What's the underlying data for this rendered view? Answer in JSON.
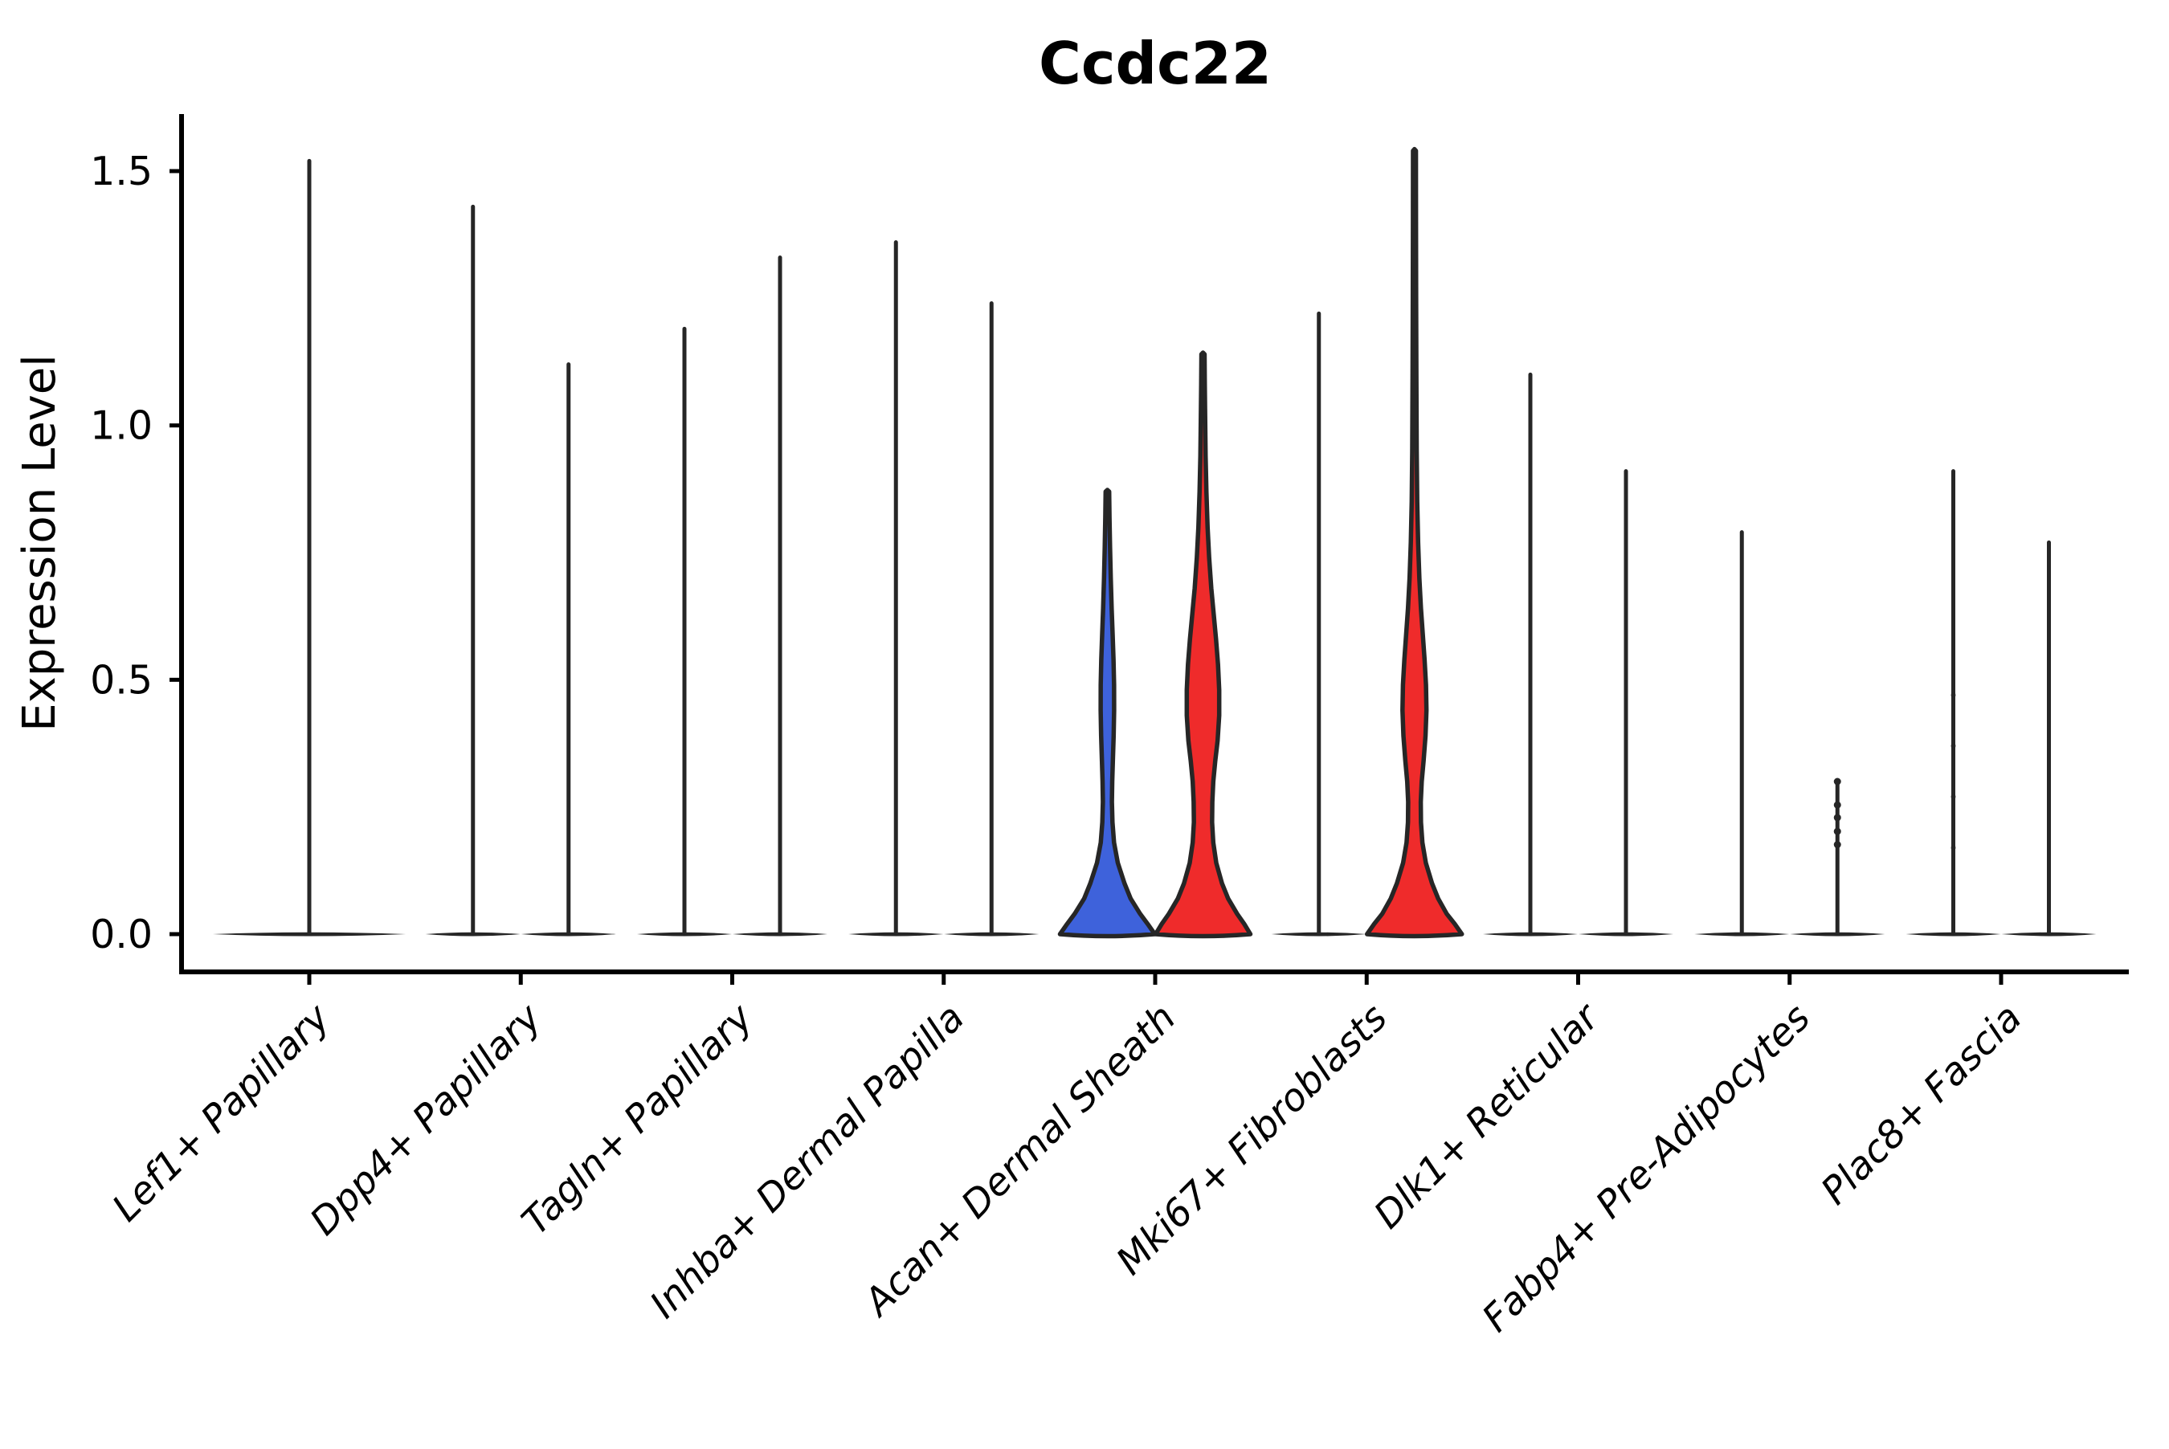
{
  "title": "Ccdc22",
  "axes": {
    "ylabel": "Expression Level",
    "ytick_labels": [
      "0.0",
      "0.5",
      "1.0",
      "1.5"
    ],
    "ytick_values": [
      0.0,
      0.5,
      1.0,
      1.5
    ]
  },
  "colors": {
    "blue_fill": "#3E62DB",
    "red_fill": "#EF2B2B",
    "violin_outline": "#262626",
    "axis_color": "#000000",
    "background": "#FFFFFF"
  },
  "chart_data": {
    "type": "violin",
    "title": "Ccdc22",
    "xlabel": "",
    "ylabel": "Expression Level",
    "ylim": [
      -0.07,
      1.61
    ],
    "yticks": [
      0.0,
      0.5,
      1.0,
      1.5
    ],
    "grid": false,
    "legend": "none",
    "categories": [
      "Lef1+ Papillary",
      "Dpp4+ Papillary",
      "Tagln+ Papillary",
      "Inhba+ Dermal Papilla",
      "Acan+ Dermal Sheath",
      "Mki67+ Fibroblasts",
      "Dlk1+ Reticular",
      "Fabp4+ Pre-Adipocytes",
      "Plac8+ Fascia"
    ],
    "violins": [
      {
        "category": "Lef1+ Papillary",
        "group": "single",
        "max": 1.52,
        "fill": "none"
      },
      {
        "category": "Dpp4+ Papillary",
        "group": "left",
        "max": 1.43,
        "fill": "none"
      },
      {
        "category": "Dpp4+ Papillary",
        "group": "right",
        "max": 1.12,
        "fill": "none"
      },
      {
        "category": "Tagln+ Papillary",
        "group": "left",
        "max": 1.19,
        "fill": "none"
      },
      {
        "category": "Tagln+ Papillary",
        "group": "right",
        "max": 1.33,
        "fill": "none"
      },
      {
        "category": "Inhba+ Dermal Papilla",
        "group": "left",
        "max": 1.36,
        "fill": "none"
      },
      {
        "category": "Inhba+ Dermal Papilla",
        "group": "right",
        "max": 1.24,
        "fill": "none"
      },
      {
        "category": "Acan+ Dermal Sheath",
        "group": "left",
        "max": 0.87,
        "fill": "blue",
        "profile": [
          [
            0,
            1
          ],
          [
            0.02,
            0.85
          ],
          [
            0.04,
            0.69
          ],
          [
            0.07,
            0.49
          ],
          [
            0.1,
            0.36
          ],
          [
            0.14,
            0.22
          ],
          [
            0.18,
            0.14
          ],
          [
            0.22,
            0.107
          ],
          [
            0.26,
            0.095
          ],
          [
            0.3,
            0.102
          ],
          [
            0.34,
            0.115
          ],
          [
            0.39,
            0.132
          ],
          [
            0.44,
            0.142
          ],
          [
            0.49,
            0.141
          ],
          [
            0.54,
            0.129
          ],
          [
            0.59,
            0.11
          ],
          [
            0.64,
            0.09
          ],
          [
            0.7,
            0.071
          ],
          [
            0.76,
            0.056
          ],
          [
            0.82,
            0.044
          ],
          [
            0.87,
            0.037
          ]
        ]
      },
      {
        "category": "Acan+ Dermal Sheath",
        "group": "right",
        "max": 1.14,
        "fill": "red",
        "profile": [
          [
            0,
            1
          ],
          [
            0.02,
            0.87
          ],
          [
            0.04,
            0.72
          ],
          [
            0.07,
            0.53
          ],
          [
            0.1,
            0.4
          ],
          [
            0.14,
            0.28
          ],
          [
            0.18,
            0.217
          ],
          [
            0.22,
            0.192
          ],
          [
            0.26,
            0.197
          ],
          [
            0.3,
            0.217
          ],
          [
            0.34,
            0.258
          ],
          [
            0.38,
            0.308
          ],
          [
            0.43,
            0.342
          ],
          [
            0.48,
            0.342
          ],
          [
            0.53,
            0.317
          ],
          [
            0.58,
            0.275
          ],
          [
            0.63,
            0.225
          ],
          [
            0.68,
            0.175
          ],
          [
            0.74,
            0.13
          ],
          [
            0.8,
            0.097
          ],
          [
            0.87,
            0.072
          ],
          [
            0.94,
            0.055
          ],
          [
            1.02,
            0.045
          ],
          [
            1.08,
            0.038
          ],
          [
            1.14,
            0.033
          ]
        ]
      },
      {
        "category": "Mki67+ Fibroblasts",
        "group": "left",
        "max": 1.22,
        "fill": "none"
      },
      {
        "category": "Mki67+ Fibroblasts",
        "group": "right",
        "max": 1.54,
        "fill": "red",
        "profile": [
          [
            0,
            1
          ],
          [
            0.02,
            0.85
          ],
          [
            0.04,
            0.68
          ],
          [
            0.07,
            0.5
          ],
          [
            0.1,
            0.37
          ],
          [
            0.14,
            0.24
          ],
          [
            0.18,
            0.167
          ],
          [
            0.22,
            0.137
          ],
          [
            0.26,
            0.133
          ],
          [
            0.3,
            0.153
          ],
          [
            0.34,
            0.192
          ],
          [
            0.39,
            0.233
          ],
          [
            0.44,
            0.253
          ],
          [
            0.49,
            0.243
          ],
          [
            0.54,
            0.213
          ],
          [
            0.59,
            0.175
          ],
          [
            0.64,
            0.137
          ],
          [
            0.7,
            0.103
          ],
          [
            0.77,
            0.077
          ],
          [
            0.85,
            0.058
          ],
          [
            0.95,
            0.047
          ],
          [
            1.1,
            0.04
          ],
          [
            1.25,
            0.035
          ],
          [
            1.4,
            0.032
          ],
          [
            1.54,
            0.03
          ]
        ]
      },
      {
        "category": "Dlk1+ Reticular",
        "group": "left",
        "max": 1.1,
        "fill": "none"
      },
      {
        "category": "Dlk1+ Reticular",
        "group": "right",
        "max": 0.91,
        "fill": "none"
      },
      {
        "category": "Fabp4+ Pre-Adipocytes",
        "group": "left",
        "max": 0.79,
        "fill": "none"
      },
      {
        "category": "Fabp4+ Pre-Adipocytes",
        "group": "right",
        "max": 0.3,
        "fill": "none",
        "dots": [
          0.3,
          0.254,
          0.229,
          0.202,
          0.176
        ],
        "dot_r": 4.5,
        "dot_opacity": 1
      },
      {
        "category": "Plac8+ Fascia",
        "group": "left",
        "max": 0.91,
        "fill": "none",
        "dots": [
          0.47,
          0.37,
          0.27,
          0.17
        ],
        "dot_r": 3.2,
        "dot_opacity": 0.5
      },
      {
        "category": "Plac8+ Fascia",
        "group": "right",
        "max": 0.77,
        "fill": "none"
      }
    ]
  }
}
